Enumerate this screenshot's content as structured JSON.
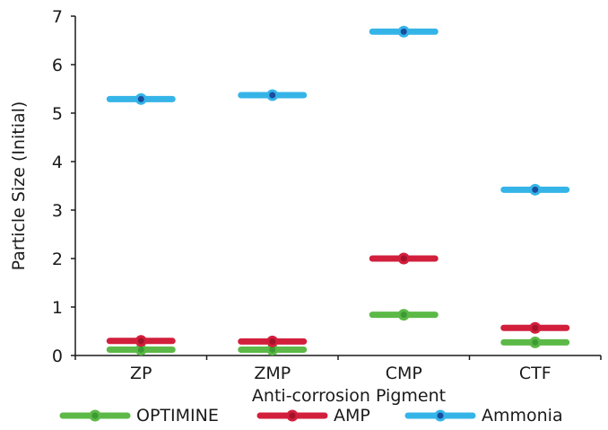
{
  "chart_data": {
    "type": "scatter",
    "title": "",
    "xlabel": "Anti-corrosion Pigment",
    "ylabel": "Particle Size (Initial)",
    "categories": [
      "ZP",
      "ZMP",
      "CMP",
      "CTF"
    ],
    "ylim": [
      0,
      7
    ],
    "yticks": [
      "0",
      "1",
      "2",
      "3",
      "4",
      "5",
      "6",
      "7"
    ],
    "grid": false,
    "legend_position": "bottom",
    "series": [
      {
        "name": "OPTIMINE",
        "color": "#5cb947",
        "dot_color": "#3b9a34",
        "values": [
          0.12,
          0.12,
          0.84,
          0.27
        ]
      },
      {
        "name": "AMP",
        "color": "#d21f3c",
        "dot_color": "#a3122a",
        "values": [
          0.3,
          0.29,
          2.0,
          0.57
        ]
      },
      {
        "name": "Ammonia",
        "color": "#35b4e8",
        "dot_color": "#1a4d9c",
        "values": [
          5.29,
          5.37,
          6.68,
          3.42
        ]
      }
    ]
  }
}
